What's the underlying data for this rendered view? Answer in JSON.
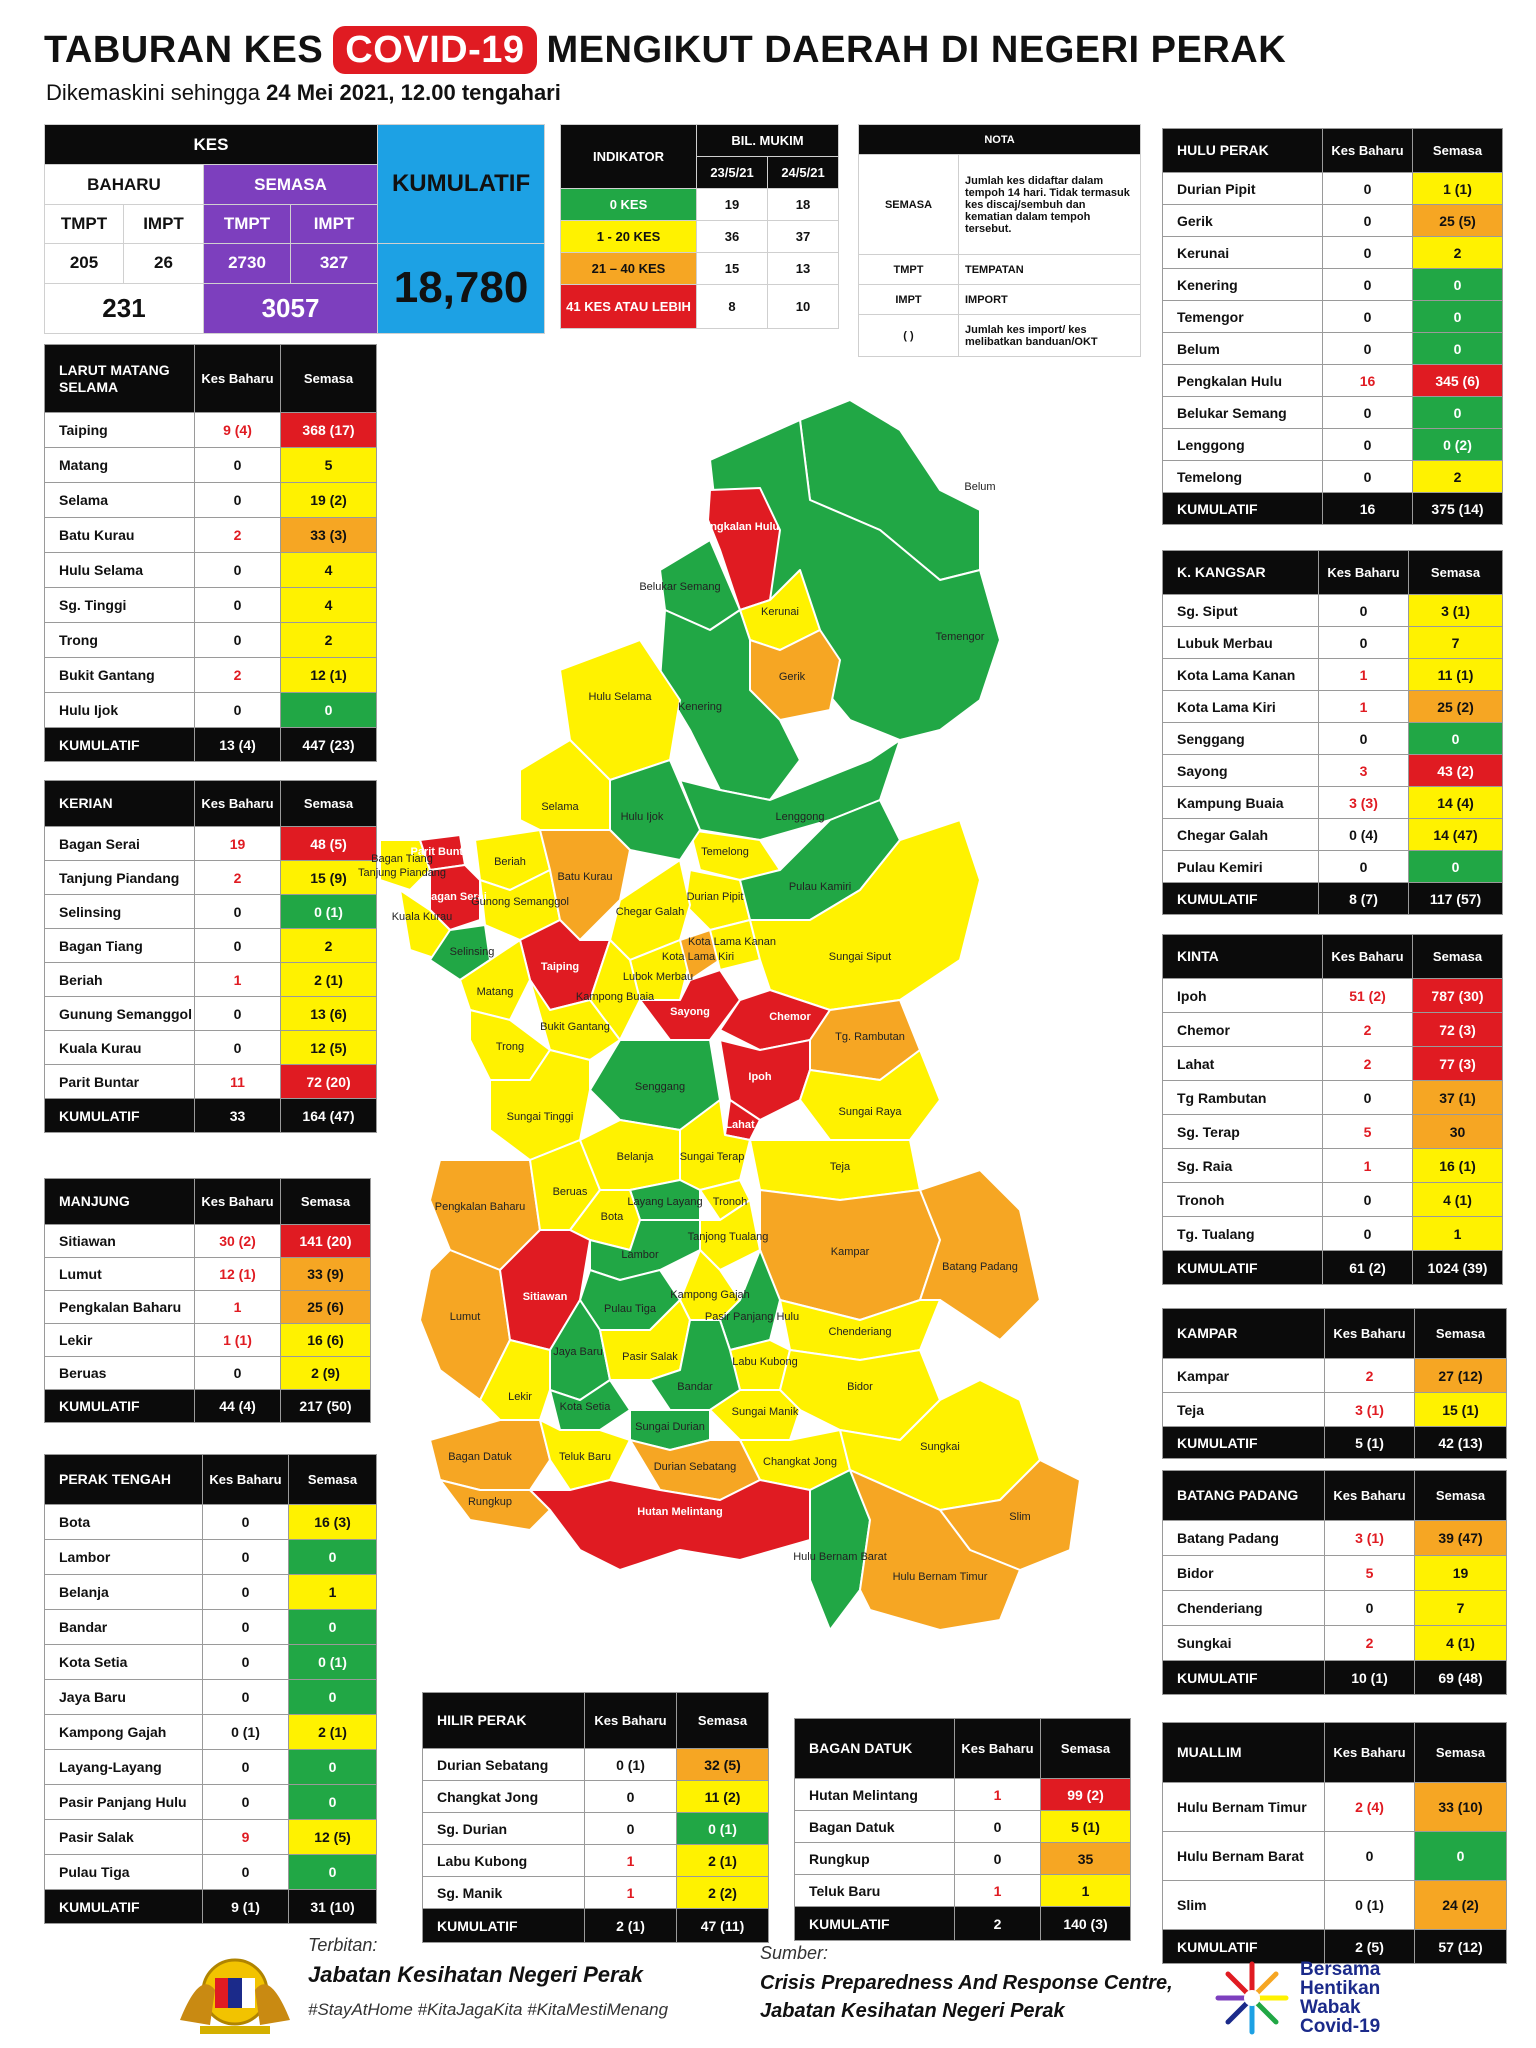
{
  "header": {
    "title_pre": "TABURAN KES",
    "title_highlight": "COVID-19",
    "title_post": "MENGIKUT DAERAH DI NEGERI PERAK",
    "subtitle_pre": "Dikemaskini sehingga",
    "subtitle_date": "24 Mei 2021, 12.00 tengahari"
  },
  "summary": {
    "kes": "KES",
    "baharu": "BAHARU",
    "semasa": "SEMASA",
    "kumulatif": "KUMULATIF",
    "tmpt": "TMPT",
    "impt": "IMPT",
    "baharu_tmpt": "205",
    "baharu_impt": "26",
    "semasa_tmpt": "2730",
    "semasa_impt": "327",
    "baharu_total": "231",
    "semasa_total": "3057",
    "kumulatif_total": "18,780"
  },
  "indicator": {
    "header": "INDIKATOR",
    "bil": "BIL. MUKIM",
    "d1": "23/5/21",
    "d2": "24/5/21",
    "rows": [
      {
        "label": "0 KES",
        "v1": "19",
        "v2": "18",
        "color": "green"
      },
      {
        "label": "1 - 20 KES",
        "v1": "36",
        "v2": "37",
        "color": "yellow"
      },
      {
        "label": "21 – 40 KES",
        "v1": "15",
        "v2": "13",
        "color": "orange"
      },
      {
        "label": "41 KES ATAU LEBIH",
        "v1": "8",
        "v2": "10",
        "color": "red"
      }
    ]
  },
  "nota": {
    "header": "NOTA",
    "semasa_k": "SEMASA",
    "semasa_v": "Jumlah kes didaftar dalam tempoh 14 hari. Tidak termasuk kes discaj/sembuh dan kematian dalam tempoh tersebut.",
    "tmpt_k": "TMPT",
    "tmpt_v": "TEMPATAN",
    "impt_k": "IMPT",
    "impt_v": "IMPORT",
    "par_k": "( )",
    "par_v": "Jumlah kes import/ kes melibatkan banduan/OKT"
  },
  "col_kes_baharu": "Kes Baharu",
  "col_semasa": "Semasa",
  "districts": {
    "lms": {
      "name": "LARUT MATANG SELAMA",
      "rows": [
        {
          "n": "Taiping",
          "b": "9 (4)",
          "s": "368 (17)",
          "br": true,
          "c": "red"
        },
        {
          "n": "Matang",
          "b": "0",
          "s": "5",
          "br": false,
          "c": "yellow"
        },
        {
          "n": "Selama",
          "b": "0",
          "s": "19 (2)",
          "br": false,
          "c": "yellow"
        },
        {
          "n": "Batu Kurau",
          "b": "2",
          "s": "33 (3)",
          "br": true,
          "c": "orange"
        },
        {
          "n": "Hulu Selama",
          "b": "0",
          "s": "4",
          "br": false,
          "c": "yellow"
        },
        {
          "n": "Sg. Tinggi",
          "b": "0",
          "s": "4",
          "br": false,
          "c": "yellow"
        },
        {
          "n": "Trong",
          "b": "0",
          "s": "2",
          "br": false,
          "c": "yellow"
        },
        {
          "n": "Bukit Gantang",
          "b": "2",
          "s": "12 (1)",
          "br": true,
          "c": "yellow"
        },
        {
          "n": "Hulu Ijok",
          "b": "0",
          "s": "0",
          "br": false,
          "c": "green"
        }
      ],
      "total_b": "13 (4)",
      "total_s": "447 (23)"
    },
    "kerian": {
      "name": "KERIAN",
      "rows": [
        {
          "n": "Bagan Serai",
          "b": "19",
          "s": "48 (5)",
          "br": true,
          "c": "red"
        },
        {
          "n": "Tanjung Piandang",
          "b": "2",
          "s": "15 (9)",
          "br": true,
          "c": "yellow"
        },
        {
          "n": "Selinsing",
          "b": "0",
          "s": "0 (1)",
          "br": false,
          "c": "green"
        },
        {
          "n": "Bagan Tiang",
          "b": "0",
          "s": "2",
          "br": false,
          "c": "yellow"
        },
        {
          "n": "Beriah",
          "b": "1",
          "s": "2 (1)",
          "br": true,
          "c": "yellow"
        },
        {
          "n": "Gunung Semanggol",
          "b": "0",
          "s": "13 (6)",
          "br": false,
          "c": "yellow"
        },
        {
          "n": "Kuala Kurau",
          "b": "0",
          "s": "12 (5)",
          "br": false,
          "c": "yellow"
        },
        {
          "n": "Parit Buntar",
          "b": "11",
          "s": "72 (20)",
          "br": true,
          "c": "red"
        }
      ],
      "total_b": "33",
      "total_s": "164 (47)"
    },
    "manjung": {
      "name": "MANJUNG",
      "rows": [
        {
          "n": "Sitiawan",
          "b": "30 (2)",
          "s": "141 (20)",
          "br": true,
          "c": "red"
        },
        {
          "n": "Lumut",
          "b": "12 (1)",
          "s": "33 (9)",
          "br": true,
          "c": "orange"
        },
        {
          "n": "Pengkalan Baharu",
          "b": "1",
          "s": "25 (6)",
          "br": true,
          "c": "orange"
        },
        {
          "n": "Lekir",
          "b": "1 (1)",
          "s": "16 (6)",
          "br": true,
          "c": "yellow"
        },
        {
          "n": "Beruas",
          "b": "0",
          "s": "2 (9)",
          "br": false,
          "c": "yellow"
        }
      ],
      "total_b": "44 (4)",
      "total_s": "217 (50)"
    },
    "pt": {
      "name": "PERAK TENGAH",
      "rows": [
        {
          "n": "Bota",
          "b": "0",
          "s": "16 (3)",
          "br": false,
          "c": "yellow"
        },
        {
          "n": "Lambor",
          "b": "0",
          "s": "0",
          "br": false,
          "c": "green"
        },
        {
          "n": "Belanja",
          "b": "0",
          "s": "1",
          "br": false,
          "c": "yellow"
        },
        {
          "n": "Bandar",
          "b": "0",
          "s": "0",
          "br": false,
          "c": "green"
        },
        {
          "n": "Kota Setia",
          "b": "0",
          "s": "0 (1)",
          "br": false,
          "c": "green"
        },
        {
          "n": "Jaya Baru",
          "b": "0",
          "s": "0",
          "br": false,
          "c": "green"
        },
        {
          "n": "Kampong Gajah",
          "b": "0 (1)",
          "s": "2 (1)",
          "br": false,
          "c": "yellow"
        },
        {
          "n": "Layang-Layang",
          "b": "0",
          "s": "0",
          "br": false,
          "c": "green"
        },
        {
          "n": "Pasir Panjang Hulu",
          "b": "0",
          "s": "0",
          "br": false,
          "c": "green"
        },
        {
          "n": "Pasir Salak",
          "b": "9",
          "s": "12 (5)",
          "br": true,
          "c": "yellow"
        },
        {
          "n": "Pulau Tiga",
          "b": "0",
          "s": "0",
          "br": false,
          "c": "green"
        }
      ],
      "total_b": "9 (1)",
      "total_s": "31 (10)"
    },
    "hp": {
      "name": "HILIR PERAK",
      "rows": [
        {
          "n": "Durian Sebatang",
          "b": "0 (1)",
          "s": "32 (5)",
          "br": false,
          "c": "orange"
        },
        {
          "n": "Changkat Jong",
          "b": "0",
          "s": "11 (2)",
          "br": false,
          "c": "yellow"
        },
        {
          "n": "Sg. Durian",
          "b": "0",
          "s": "0 (1)",
          "br": false,
          "c": "green"
        },
        {
          "n": "Labu Kubong",
          "b": "1",
          "s": "2 (1)",
          "br": true,
          "c": "yellow"
        },
        {
          "n": "Sg. Manik",
          "b": "1",
          "s": "2 (2)",
          "br": true,
          "c": "yellow"
        }
      ],
      "total_b": "2 (1)",
      "total_s": "47 (11)"
    },
    "bd": {
      "name": "BAGAN DATUK",
      "rows": [
        {
          "n": "Hutan Melintang",
          "b": "1",
          "s": "99 (2)",
          "br": true,
          "c": "red"
        },
        {
          "n": "Bagan Datuk",
          "b": "0",
          "s": "5 (1)",
          "br": false,
          "c": "yellow"
        },
        {
          "n": "Rungkup",
          "b": "0",
          "s": "35",
          "br": false,
          "c": "orange"
        },
        {
          "n": "Teluk Baru",
          "b": "1",
          "s": "1",
          "br": true,
          "c": "yellow"
        }
      ],
      "total_b": "2",
      "total_s": "140 (3)"
    },
    "hulu_perak": {
      "name": "HULU PERAK",
      "rows": [
        {
          "n": "Durian Pipit",
          "b": "0",
          "s": "1 (1)",
          "br": false,
          "c": "yellow"
        },
        {
          "n": "Gerik",
          "b": "0",
          "s": "25 (5)",
          "br": false,
          "c": "orange"
        },
        {
          "n": "Kerunai",
          "b": "0",
          "s": "2",
          "br": false,
          "c": "yellow"
        },
        {
          "n": "Kenering",
          "b": "0",
          "s": "0",
          "br": false,
          "c": "green"
        },
        {
          "n": "Temengor",
          "b": "0",
          "s": "0",
          "br": false,
          "c": "green"
        },
        {
          "n": "Belum",
          "b": "0",
          "s": "0",
          "br": false,
          "c": "green"
        },
        {
          "n": "Pengkalan Hulu",
          "b": "16",
          "s": "345 (6)",
          "br": true,
          "c": "red"
        },
        {
          "n": "Belukar Semang",
          "b": "0",
          "s": "0",
          "br": false,
          "c": "green"
        },
        {
          "n": "Lenggong",
          "b": "0",
          "s": "0 (2)",
          "br": false,
          "c": "green"
        },
        {
          "n": "Temelong",
          "b": "0",
          "s": "2",
          "br": false,
          "c": "yellow"
        }
      ],
      "total_b": "16",
      "total_s": "375 (14)"
    },
    "kk": {
      "name": "K. KANGSAR",
      "rows": [
        {
          "n": "Sg. Siput",
          "b": "0",
          "s": "3 (1)",
          "br": false,
          "c": "yellow"
        },
        {
          "n": "Lubuk Merbau",
          "b": "0",
          "s": "7",
          "br": false,
          "c": "yellow"
        },
        {
          "n": "Kota Lama Kanan",
          "b": "1",
          "s": "11 (1)",
          "br": true,
          "c": "yellow"
        },
        {
          "n": "Kota Lama Kiri",
          "b": "1",
          "s": "25 (2)",
          "br": true,
          "c": "orange"
        },
        {
          "n": "Senggang",
          "b": "0",
          "s": "0",
          "br": false,
          "c": "green"
        },
        {
          "n": "Sayong",
          "b": "3",
          "s": "43 (2)",
          "br": true,
          "c": "red"
        },
        {
          "n": "Kampung Buaia",
          "b": "3 (3)",
          "s": "14 (4)",
          "br": true,
          "c": "yellow"
        },
        {
          "n": "Chegar Galah",
          "b": "0 (4)",
          "s": "14 (47)",
          "br": false,
          "c": "yellow"
        },
        {
          "n": "Pulau Kemiri",
          "b": "0",
          "s": "0",
          "br": false,
          "c": "green"
        }
      ],
      "total_b": "8 (7)",
      "total_s": "117 (57)"
    },
    "kinta": {
      "name": "KINTA",
      "rows": [
        {
          "n": "Ipoh",
          "b": "51 (2)",
          "s": "787 (30)",
          "br": true,
          "c": "red"
        },
        {
          "n": "Chemor",
          "b": "2",
          "s": "72 (3)",
          "br": true,
          "c": "red"
        },
        {
          "n": "Lahat",
          "b": "2",
          "s": "77 (3)",
          "br": true,
          "c": "red"
        },
        {
          "n": "Tg Rambutan",
          "b": "0",
          "s": "37 (1)",
          "br": false,
          "c": "orange"
        },
        {
          "n": "Sg. Terap",
          "b": "5",
          "s": "30",
          "br": true,
          "c": "orange"
        },
        {
          "n": "Sg. Raia",
          "b": "1",
          "s": "16 (1)",
          "br": true,
          "c": "yellow"
        },
        {
          "n": "Tronoh",
          "b": "0",
          "s": "4 (1)",
          "br": false,
          "c": "yellow"
        },
        {
          "n": "Tg. Tualang",
          "b": "0",
          "s": "1",
          "br": false,
          "c": "yellow"
        }
      ],
      "total_b": "61 (2)",
      "total_s": "1024 (39)"
    },
    "kampar": {
      "name": "KAMPAR",
      "rows": [
        {
          "n": "Kampar",
          "b": "2",
          "s": "27 (12)",
          "br": true,
          "c": "orange"
        },
        {
          "n": "Teja",
          "b": "3 (1)",
          "s": "15 (1)",
          "br": true,
          "c": "yellow"
        }
      ],
      "total_b": "5 (1)",
      "total_s": "42 (13)"
    },
    "bp": {
      "name": "BATANG PADANG",
      "rows": [
        {
          "n": "Batang Padang",
          "b": "3 (1)",
          "s": "39 (47)",
          "br": true,
          "c": "orange"
        },
        {
          "n": "Bidor",
          "b": "5",
          "s": "19",
          "br": true,
          "c": "yellow"
        },
        {
          "n": "Chenderiang",
          "b": "0",
          "s": "7",
          "br": false,
          "c": "yellow"
        },
        {
          "n": "Sungkai",
          "b": "2",
          "s": "4 (1)",
          "br": true,
          "c": "yellow"
        }
      ],
      "total_b": "10 (1)",
      "total_s": "69 (48)"
    },
    "muallim": {
      "name": "MUALLIM",
      "rows": [
        {
          "n": "Hulu Bernam Timur",
          "b": "2 (4)",
          "s": "33 (10)",
          "br": true,
          "c": "orange"
        },
        {
          "n": "Hulu Bernam Barat",
          "b": "0",
          "s": "0",
          "br": false,
          "c": "green"
        },
        {
          "n": "Slim",
          "b": "0 (1)",
          "s": "24 (2)",
          "br": false,
          "c": "orange"
        }
      ],
      "total_b": "2 (5)",
      "total_s": "57 (12)"
    }
  },
  "kumulatif_label": "KUMULATIF",
  "map_labels": {
    "belum": "Belum",
    "temengor": "Temengor",
    "pengkalan_hulu": "Pengkalan Hulu",
    "belukar_semang": "Belukar Semang",
    "kerunai": "Kerunai",
    "gerik": "Gerik",
    "kenering": "Kenering",
    "hulu_selama": "Hulu Selama",
    "selama": "Selama",
    "hulu_ijok": "Hulu Ijok",
    "lenggong": "Lenggong",
    "temelong": "Temelong",
    "durian_pipit": "Durian Pipit",
    "pulau_kamiri": "Pulau Kamiri",
    "bagan_tiang": "Bagan Tiang",
    "tanjung_piandang": "Tanjung Piandang",
    "parit_buntar": "Parit Buntar",
    "beriah": "Beriah",
    "bagan_serai": "Bagan Serai",
    "kuala_kurau": "Kuala Kurau",
    "gunong_semanggol": "Gunong Semanggol",
    "batu_kurau": "Batu Kurau",
    "selinsing": "Selinsing",
    "chegar_galah": "Chegar Galah",
    "taiping": "Taiping",
    "lubok_merbau": "Lubok Merbau",
    "kota_lama_kiri": "Kota Lama Kiri",
    "kota_lama_kanan": "Kota Lama Kanan",
    "sungai_siput": "Sungai Siput",
    "matang": "Matang",
    "kampong_buaia": "Kampong Buaia",
    "sayong": "Sayong",
    "bukit_gantang": "Bukit Gantang",
    "trong": "Trong",
    "chemor": "Chemor",
    "tg_rambutan": "Tg. Rambutan",
    "senggang": "Senggang",
    "sungai_tinggi": "Sungai Tinggi",
    "ipoh": "Ipoh",
    "sungai_raya": "Sungai Raya",
    "lahat": "Lahat",
    "pengkalan_baharu": "Pengkalan Baharu",
    "beruas": "Beruas",
    "belanja": "Belanja",
    "sungai_terap": "Sungai Terap",
    "teja": "Teja",
    "tronoh": "Tronoh",
    "layang_layang": "Layang Layang",
    "bota": "Bota",
    "tanjong_tualang": "Tanjong Tualang",
    "kampar": "Kampar",
    "lumut": "Lumut",
    "sitiawan": "Sitiawan",
    "lambor": "Lambor",
    "batang_padang": "Batang Padang",
    "chenderiang": "Chenderiang",
    "pulau_tiga": "Pulau Tiga",
    "kampong_gajah": "Kampong Gajah",
    "pasir_panjang_hulu": "Pasir Panjang Hulu",
    "jaya_baru": "Jaya Baru",
    "pasir_salak": "Pasir Salak",
    "labu_kubong": "Labu Kubong",
    "bidor": "Bidor",
    "lekir": "Lekir",
    "kota_setia": "Kota Setia",
    "bandar": "Bandar",
    "sungai_manik": "Sungai Manik",
    "sungai_durian": "Sungai Durian",
    "changkat_jong": "Changkat Jong",
    "bagan_datuk": "Bagan Datuk",
    "teluk_baru": "Teluk Baru",
    "durian_sebatang": "Durian Sebatang",
    "sungkai": "Sungkai",
    "rungkup": "Rungkup",
    "hutan_melintang": "Hutan Melintang",
    "slim": "Slim",
    "hulu_bernam_barat": "Hulu Bernam Barat",
    "hulu_bernam_timur": "Hulu Bernam Timur"
  },
  "footer": {
    "terbitan": "Terbitan:",
    "publisher": "Jabatan Kesihatan Negeri Perak",
    "tags": "#StayAtHome #KitaJagaKita #KitaMestiMenang",
    "sumber": "Sumber:",
    "source1": "Crisis Preparedness And Response Centre,",
    "source2": "Jabatan Kesihatan Negeri Perak",
    "campaign": "Bersama Hentikan Wabak Covid-19"
  },
  "colors": {
    "green": "#21a745",
    "yellow": "#fff200",
    "orange": "#f6a623",
    "red": "#e01b22",
    "purple": "#7d3fbe",
    "blue": "#1da1e4"
  }
}
